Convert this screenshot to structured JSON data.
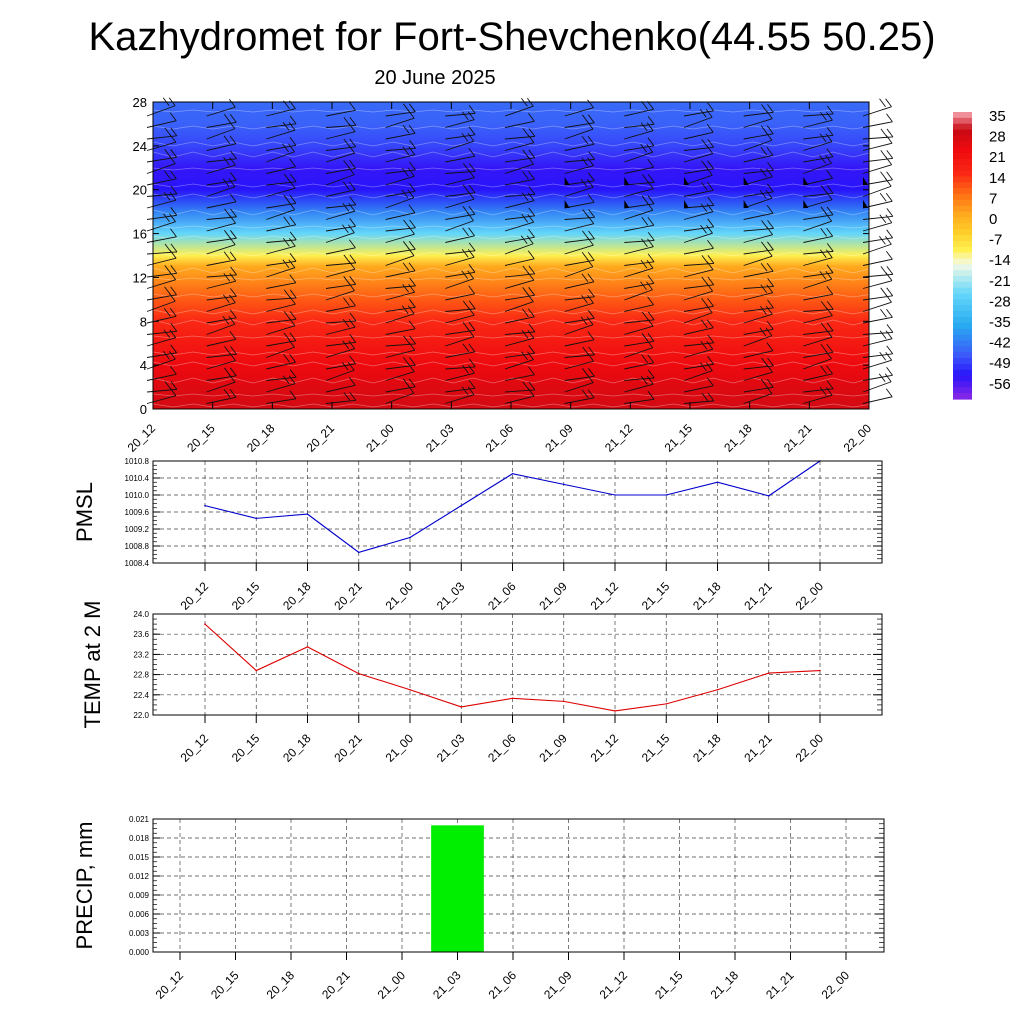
{
  "title": "Kazhydromet for Fort-Shevchenko(44.55 50.25)",
  "date": "20 June 2025",
  "time_labels": [
    "20_12",
    "20_15",
    "20_18",
    "20_21",
    "21_00",
    "21_03",
    "21_06",
    "21_09",
    "21_12",
    "21_15",
    "21_18",
    "21_21",
    "22_00"
  ],
  "chart_data": [
    {
      "type": "heatmap",
      "y_ticks": [
        "0",
        "4",
        "8",
        "12",
        "16",
        "20",
        "24",
        "28"
      ],
      "ylim": [
        0,
        28
      ],
      "x": [
        "20_12",
        "20_15",
        "20_18",
        "20_21",
        "21_00",
        "21_03",
        "21_06",
        "21_09",
        "21_12",
        "21_15",
        "21_18",
        "21_21",
        "22_00"
      ],
      "colorbar": {
        "labels": [
          "35",
          "28",
          "21",
          "14",
          "7",
          "0",
          "-7",
          "-14",
          "-21",
          "-28",
          "-35",
          "-42",
          "-49",
          "-56"
        ],
        "range": [
          -60,
          38
        ]
      },
      "profile": {
        "levels": [
          0,
          2,
          4,
          6,
          8,
          10,
          12,
          13,
          14,
          16,
          18,
          20,
          22,
          24,
          26,
          28
        ],
        "values": [
          30,
          28,
          25,
          21,
          17,
          12,
          6,
          3,
          -9,
          -24,
          -40,
          -52,
          -53,
          -47,
          -44,
          -43
        ]
      },
      "wind_barbs": true
    },
    {
      "type": "line",
      "ylabel": "PMSL",
      "x": [
        "20_12",
        "20_15",
        "20_18",
        "20_21",
        "21_00",
        "21_03",
        "21_06",
        "21_09",
        "21_12",
        "21_15",
        "21_18",
        "21_21",
        "22_00"
      ],
      "y_ticks": [
        "1008.4",
        "1008.8",
        "1009.2",
        "1009.6",
        "1010.0",
        "1010.4",
        "1010.8"
      ],
      "ylim": [
        1008.4,
        1010.8
      ],
      "values": [
        1009.75,
        1009.45,
        1009.55,
        1008.65,
        1009.0,
        1009.75,
        1010.5,
        1010.25,
        1010.0,
        1010.0,
        1010.3,
        1009.98,
        1010.8
      ],
      "color": "#0000cc"
    },
    {
      "type": "line",
      "ylabel": "TEMP at 2 M",
      "x": [
        "20_12",
        "20_15",
        "20_18",
        "20_21",
        "21_00",
        "21_03",
        "21_06",
        "21_09",
        "21_12",
        "21_15",
        "21_18",
        "21_21",
        "22_00"
      ],
      "y_ticks": [
        "22.0",
        "22.4",
        "22.8",
        "23.2",
        "23.6",
        "24.0"
      ],
      "ylim": [
        22.0,
        24.0
      ],
      "values": [
        23.8,
        22.88,
        23.35,
        22.82,
        22.5,
        22.16,
        22.33,
        22.27,
        22.08,
        22.22,
        22.5,
        22.83,
        22.88
      ],
      "color": "#dd0000"
    },
    {
      "type": "bar",
      "ylabel": "PRECIP, mm",
      "categories": [
        "20_12",
        "20_15",
        "20_18",
        "20_21",
        "21_00",
        "21_03",
        "21_06",
        "21_09",
        "21_12",
        "21_15",
        "21_18",
        "21_21",
        "22_00"
      ],
      "y_ticks": [
        "0.000",
        "0.003",
        "0.006",
        "0.009",
        "0.012",
        "0.015",
        "0.018",
        "0.021"
      ],
      "ylim": [
        0,
        0.021
      ],
      "values": [
        0,
        0,
        0,
        0,
        0,
        0.02,
        0,
        0,
        0,
        0,
        0,
        0,
        0
      ],
      "color": "#00ee00"
    }
  ]
}
